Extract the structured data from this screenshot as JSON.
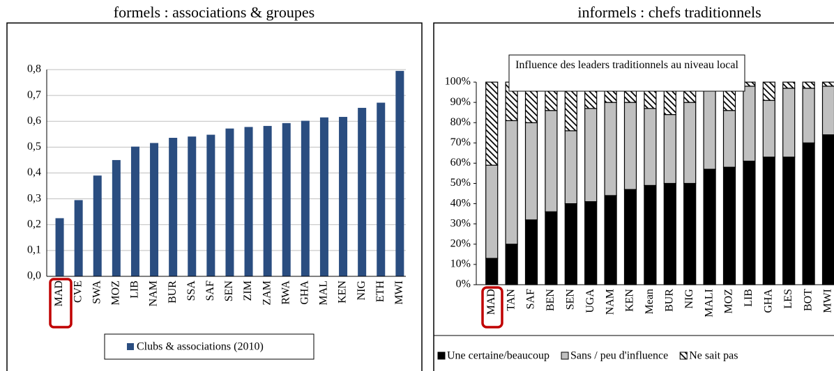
{
  "chart_data": [
    {
      "type": "bar",
      "subtitle": "formels : associations & groupes",
      "categories": [
        "MAD",
        "CVE",
        "SWA",
        "MOZ",
        "LIB",
        "NAM",
        "BUR",
        "SSA",
        "SAF",
        "SEN",
        "ZIM",
        "ZAM",
        "RWA",
        "GHA",
        "MAL",
        "KEN",
        "NIG",
        "ETH",
        "MWI"
      ],
      "series": [
        {
          "name": "Clubs & associations (2010)",
          "color": "#2a4d80",
          "values": [
            0.225,
            0.295,
            0.39,
            0.45,
            0.502,
            0.516,
            0.536,
            0.541,
            0.548,
            0.572,
            0.578,
            0.582,
            0.593,
            0.602,
            0.615,
            0.617,
            0.652,
            0.672,
            0.795
          ]
        }
      ],
      "ylim": [
        0,
        0.8
      ],
      "yticks": [
        {
          "value": 0,
          "label": "0,0"
        },
        {
          "value": 0.1,
          "label": "0,1"
        },
        {
          "value": 0.2,
          "label": "0,2"
        },
        {
          "value": 0.3,
          "label": "0,3"
        },
        {
          "value": 0.4,
          "label": "0,4"
        },
        {
          "value": 0.5,
          "label": "0,5"
        },
        {
          "value": 0.6,
          "label": "0,6"
        },
        {
          "value": 0.7,
          "label": "0,7"
        },
        {
          "value": 0.8,
          "label": "0,8"
        }
      ],
      "grid": true,
      "legend": "bottom"
    },
    {
      "type": "stacked_bar",
      "subtitle": "informels : chefs traditionnels",
      "title": "Influence des leaders traditionnels au niveau local",
      "categories": [
        "MAD",
        "TAN",
        "SAF",
        "BEN",
        "SEN",
        "UGA",
        "NAM",
        "KEN",
        "Mean",
        "BUR",
        "NIG",
        "MALI",
        "MOZ",
        "LIB",
        "GHA",
        "LES",
        "BOT",
        "MWI"
      ],
      "series": [
        {
          "name": "Une certaine/beaucoup",
          "color": "#000000",
          "values": [
            13,
            20,
            32,
            36,
            40,
            41,
            44,
            47,
            49,
            50,
            50,
            57,
            58,
            61,
            63,
            63,
            70,
            74
          ]
        },
        {
          "name": "Sans / peu d'influence",
          "color": "#c0c0c0",
          "values": [
            46,
            61,
            48,
            50,
            36,
            46,
            46,
            43,
            38,
            34,
            40,
            39,
            28,
            37,
            28,
            34,
            27,
            24
          ]
        },
        {
          "name": "Ne sait pas",
          "color": "#ffffff",
          "hatch": true,
          "values": [
            41,
            19,
            20,
            14,
            24,
            13,
            10,
            10,
            13,
            16,
            10,
            4,
            14,
            2,
            9,
            3,
            3,
            2
          ]
        }
      ],
      "ylim": [
        0,
        100
      ],
      "yticks": [
        {
          "value": 0,
          "label": "0%"
        },
        {
          "value": 10,
          "label": "10%"
        },
        {
          "value": 20,
          "label": "20%"
        },
        {
          "value": 30,
          "label": "30%"
        },
        {
          "value": 40,
          "label": "40%"
        },
        {
          "value": 50,
          "label": "50%"
        },
        {
          "value": 60,
          "label": "60%"
        },
        {
          "value": 70,
          "label": "70%"
        },
        {
          "value": 80,
          "label": "80%"
        },
        {
          "value": 90,
          "label": "90%"
        },
        {
          "value": 100,
          "label": "100%"
        }
      ],
      "grid": false,
      "legend": "bottom"
    }
  ]
}
